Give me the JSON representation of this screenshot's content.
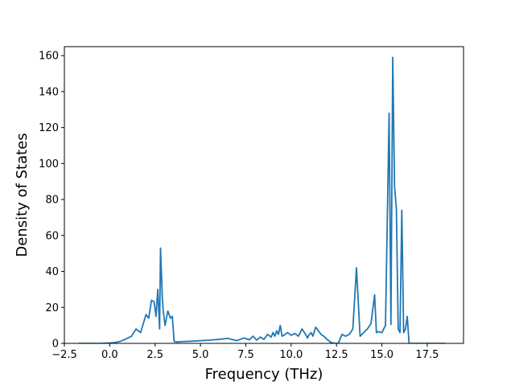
{
  "chart_data": {
    "type": "line",
    "title": "",
    "xlabel": "Frequency (THz)",
    "ylabel": "Density of States",
    "xlim": [
      -2.5,
      19.5
    ],
    "ylim": [
      0,
      165
    ],
    "x_ticks": [
      -2.5,
      0.0,
      2.5,
      5.0,
      7.5,
      10.0,
      12.5,
      15.0,
      17.5
    ],
    "x_tick_labels": [
      "−2.5",
      "0.0",
      "2.5",
      "5.0",
      "7.5",
      "10.0",
      "12.5",
      "15.0",
      "17.5"
    ],
    "y_ticks": [
      0,
      20,
      40,
      60,
      80,
      100,
      120,
      140,
      160
    ],
    "y_tick_labels": [
      "0",
      "20",
      "40",
      "60",
      "80",
      "100",
      "120",
      "140",
      "160"
    ],
    "grid": false,
    "series": [
      {
        "color": "#1f77b4",
        "x": [
          -1.7,
          -1.0,
          -0.5,
          0.0,
          0.3,
          0.6,
          0.9,
          1.2,
          1.45,
          1.7,
          1.85,
          2.0,
          2.15,
          2.3,
          2.45,
          2.55,
          2.65,
          2.75,
          2.8,
          2.9,
          2.95,
          3.05,
          3.2,
          3.35,
          3.45,
          3.55,
          3.65,
          3.8,
          4.0,
          4.5,
          5.0,
          5.5,
          6.0,
          6.5,
          7.0,
          7.4,
          7.7,
          7.9,
          8.1,
          8.3,
          8.5,
          8.7,
          8.9,
          9.0,
          9.1,
          9.2,
          9.3,
          9.4,
          9.5,
          9.6,
          9.8,
          10.0,
          10.2,
          10.4,
          10.6,
          10.8,
          10.9,
          11.0,
          11.1,
          11.2,
          11.35,
          11.5,
          11.65,
          11.8,
          12.0,
          12.2,
          12.4,
          12.6,
          12.8,
          13.0,
          13.2,
          13.4,
          13.6,
          13.8,
          14.0,
          14.2,
          14.4,
          14.6,
          14.7,
          14.8,
          15.0,
          15.2,
          15.4,
          15.5,
          15.6,
          15.7,
          15.8,
          15.9,
          16.0,
          16.1,
          16.2,
          16.3,
          16.4,
          16.5,
          16.6,
          16.7,
          16.8,
          17.0,
          17.5,
          18.0,
          18.5
        ],
        "y": [
          0,
          0,
          0,
          0.2,
          0.5,
          1.2,
          2.5,
          4,
          8,
          6,
          11,
          16,
          14,
          24,
          23,
          15,
          30,
          8,
          53,
          25,
          18,
          10,
          18,
          14,
          15,
          1,
          0.8,
          0.8,
          1,
          1.2,
          1.5,
          1.8,
          2.2,
          2.8,
          1.5,
          3,
          2,
          4,
          1.8,
          3.5,
          2.2,
          5,
          3.5,
          6,
          4,
          7,
          5,
          10,
          4,
          4.5,
          6,
          4.5,
          5.5,
          4,
          8,
          5,
          3,
          5,
          6,
          4,
          9,
          7,
          5,
          4,
          2,
          0.5,
          0,
          0,
          5,
          4,
          5,
          8,
          42,
          4,
          6,
          8,
          11,
          27,
          6,
          6.5,
          6,
          10,
          128,
          10.5,
          159,
          87,
          75,
          8,
          6,
          74,
          6,
          8,
          15,
          0,
          0,
          0,
          0,
          0,
          0,
          0,
          0
        ]
      }
    ]
  }
}
